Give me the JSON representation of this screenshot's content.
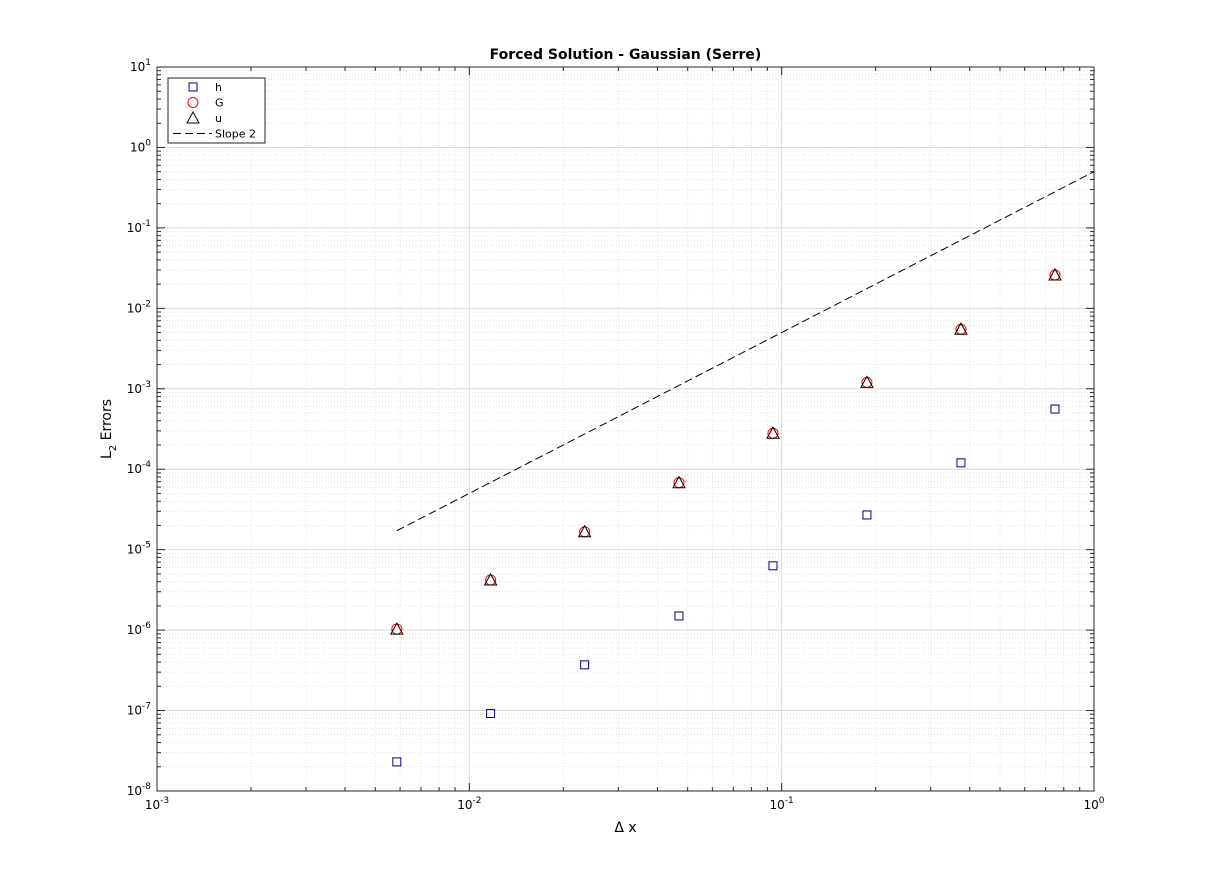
{
  "chart_data": {
    "type": "scatter",
    "title": "Forced Solution - Gaussian (Serre)",
    "xlabel": "Δ x",
    "ylabel_main": "L",
    "ylabel_sub": "2",
    "ylabel_rest": " Errors",
    "x_scale": "log",
    "y_scale": "log",
    "xlim": [
      0.001,
      1
    ],
    "ylim": [
      1e-08,
      10
    ],
    "grid": true,
    "minor_grid": true,
    "legend_position": "top-left",
    "x_ticks": [
      {
        "value": 0.001,
        "base": "10",
        "exp": "-3"
      },
      {
        "value": 0.01,
        "base": "10",
        "exp": "-2"
      },
      {
        "value": 0.1,
        "base": "10",
        "exp": "-1"
      },
      {
        "value": 1,
        "base": "10",
        "exp": "0"
      }
    ],
    "y_ticks": [
      {
        "value": 1e-08,
        "base": "10",
        "exp": "-8"
      },
      {
        "value": 1e-07,
        "base": "10",
        "exp": "-7"
      },
      {
        "value": 1e-06,
        "base": "10",
        "exp": "-6"
      },
      {
        "value": 1e-05,
        "base": "10",
        "exp": "-5"
      },
      {
        "value": 0.0001,
        "base": "10",
        "exp": "-4"
      },
      {
        "value": 0.001,
        "base": "10",
        "exp": "-3"
      },
      {
        "value": 0.01,
        "base": "10",
        "exp": "-2"
      },
      {
        "value": 0.1,
        "base": "10",
        "exp": "-1"
      },
      {
        "value": 1,
        "base": "10",
        "exp": "0"
      },
      {
        "value": 10,
        "base": "10",
        "exp": "1"
      }
    ],
    "x": [
      0.00586,
      0.0117,
      0.0234,
      0.0469,
      0.0938,
      0.1875,
      0.375,
      0.75
    ],
    "series": [
      {
        "name": "h",
        "marker": "square",
        "color": "#00008b",
        "values": [
          2.3e-08,
          9.2e-08,
          3.7e-07,
          1.5e-06,
          6.3e-06,
          2.7e-05,
          0.00012,
          0.00056
        ]
      },
      {
        "name": "G",
        "marker": "circle",
        "color": "#ff0000",
        "values": [
          1.03e-06,
          4.2e-06,
          1.67e-05,
          6.8e-05,
          0.00028,
          0.0012,
          0.0055,
          0.026
        ]
      },
      {
        "name": "u",
        "marker": "triangle",
        "color": "#000000",
        "values": [
          1.03e-06,
          4.2e-06,
          1.67e-05,
          6.8e-05,
          0.00028,
          0.0012,
          0.0055,
          0.026
        ]
      },
      {
        "name": "Slope 2",
        "marker": "dashed-line",
        "color": "#000000",
        "x": [
          0.00586,
          1.0
        ],
        "values": [
          1.72e-05,
          0.5
        ]
      }
    ]
  }
}
